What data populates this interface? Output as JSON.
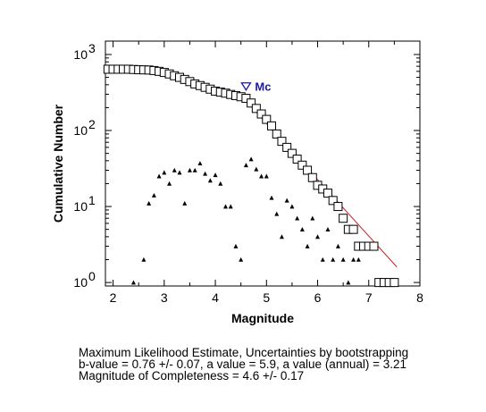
{
  "chart_data": {
    "type": "scatter",
    "xlabel": "Magnitude",
    "ylabel": "Cumulative Number",
    "xlim": [
      1.85,
      8.0
    ],
    "ylim": [
      0.9,
      1500
    ],
    "yscale": "log",
    "x_ticks": [
      "2",
      "3",
      "4",
      "5",
      "6",
      "7",
      "8"
    ],
    "x_tick_values": [
      2,
      3,
      4,
      5,
      6,
      7,
      8
    ],
    "y_tick_values": [
      1,
      10,
      100,
      1000
    ],
    "y_tick_bases": [
      "10",
      "10",
      "10",
      "10"
    ],
    "y_tick_exponents": [
      "0",
      "1",
      "2",
      "3"
    ],
    "series": [
      {
        "marker": "square",
        "points": [
          [
            1.9,
            640
          ],
          [
            2.0,
            640
          ],
          [
            2.1,
            640
          ],
          [
            2.2,
            640
          ],
          [
            2.3,
            640
          ],
          [
            2.4,
            635
          ],
          [
            2.5,
            630
          ],
          [
            2.6,
            628
          ],
          [
            2.7,
            625
          ],
          [
            2.8,
            615
          ],
          [
            2.9,
            600
          ],
          [
            3.0,
            580
          ],
          [
            3.1,
            555
          ],
          [
            3.2,
            525
          ],
          [
            3.3,
            500
          ],
          [
            3.4,
            470
          ],
          [
            3.5,
            440
          ],
          [
            3.6,
            410
          ],
          [
            3.7,
            390
          ],
          [
            3.8,
            370
          ],
          [
            3.9,
            350
          ],
          [
            4.0,
            330
          ],
          [
            4.1,
            320
          ],
          [
            4.2,
            310
          ],
          [
            4.3,
            298
          ],
          [
            4.4,
            288
          ],
          [
            4.5,
            278
          ],
          [
            4.6,
            265
          ],
          [
            4.7,
            230
          ],
          [
            4.8,
            195
          ],
          [
            4.9,
            165
          ],
          [
            5.0,
            140
          ],
          [
            5.1,
            115
          ],
          [
            5.2,
            90
          ],
          [
            5.3,
            72
          ],
          [
            5.4,
            60
          ],
          [
            5.5,
            50
          ],
          [
            5.6,
            42
          ],
          [
            5.7,
            35
          ],
          [
            5.8,
            30
          ],
          [
            5.9,
            24
          ],
          [
            6.0,
            19
          ],
          [
            6.1,
            17
          ],
          [
            6.2,
            15
          ],
          [
            6.3,
            12
          ],
          [
            6.4,
            10
          ],
          [
            6.5,
            7
          ],
          [
            6.6,
            5
          ],
          [
            6.7,
            5
          ],
          [
            6.8,
            3
          ],
          [
            6.9,
            3
          ],
          [
            7.0,
            3
          ],
          [
            7.1,
            3
          ],
          [
            7.2,
            1
          ],
          [
            7.3,
            1
          ],
          [
            7.4,
            1
          ],
          [
            7.5,
            1
          ]
        ]
      },
      {
        "marker": "triangle",
        "points": [
          [
            2.4,
            1
          ],
          [
            2.6,
            2
          ],
          [
            2.7,
            11
          ],
          [
            2.8,
            14
          ],
          [
            2.9,
            25
          ],
          [
            3.0,
            28
          ],
          [
            3.1,
            20
          ],
          [
            3.2,
            30
          ],
          [
            3.3,
            28
          ],
          [
            3.4,
            11
          ],
          [
            3.5,
            30
          ],
          [
            3.6,
            30
          ],
          [
            3.7,
            37
          ],
          [
            3.8,
            27
          ],
          [
            3.9,
            22
          ],
          [
            4.0,
            26
          ],
          [
            4.1,
            20
          ],
          [
            4.2,
            10
          ],
          [
            4.3,
            10
          ],
          [
            4.4,
            3
          ],
          [
            4.5,
            2
          ],
          [
            4.6,
            35
          ],
          [
            4.7,
            42
          ],
          [
            4.8,
            31
          ],
          [
            4.9,
            25
          ],
          [
            5.0,
            25
          ],
          [
            5.1,
            13
          ],
          [
            5.2,
            8
          ],
          [
            5.3,
            4
          ],
          [
            5.4,
            12
          ],
          [
            5.5,
            10
          ],
          [
            5.6,
            7
          ],
          [
            5.7,
            5
          ],
          [
            5.8,
            3
          ],
          [
            5.9,
            7
          ],
          [
            6.0,
            4
          ],
          [
            6.1,
            2
          ],
          [
            6.2,
            5
          ],
          [
            6.3,
            2
          ],
          [
            6.4,
            3
          ],
          [
            6.5,
            2
          ],
          [
            6.6,
            1
          ],
          [
            6.7,
            2
          ],
          [
            6.8,
            2
          ]
        ]
      }
    ],
    "fit_line": {
      "color": "#cc2222",
      "from": [
        4.6,
        245
      ],
      "to": [
        7.55,
        1.6
      ]
    },
    "mc_marker": {
      "label": "Mc",
      "x": 4.6,
      "y": 380,
      "color": "#1a1aa6"
    }
  },
  "caption": {
    "line1": "Maximum Likelihood Estimate, Uncertainties by bootstrapping",
    "line2": "b-value = 0.76 +/- 0.07,  a value = 5.9,  a value (annual) = 3.21",
    "line3": "Magnitude of Completeness = 4.6 +/- 0.17"
  }
}
